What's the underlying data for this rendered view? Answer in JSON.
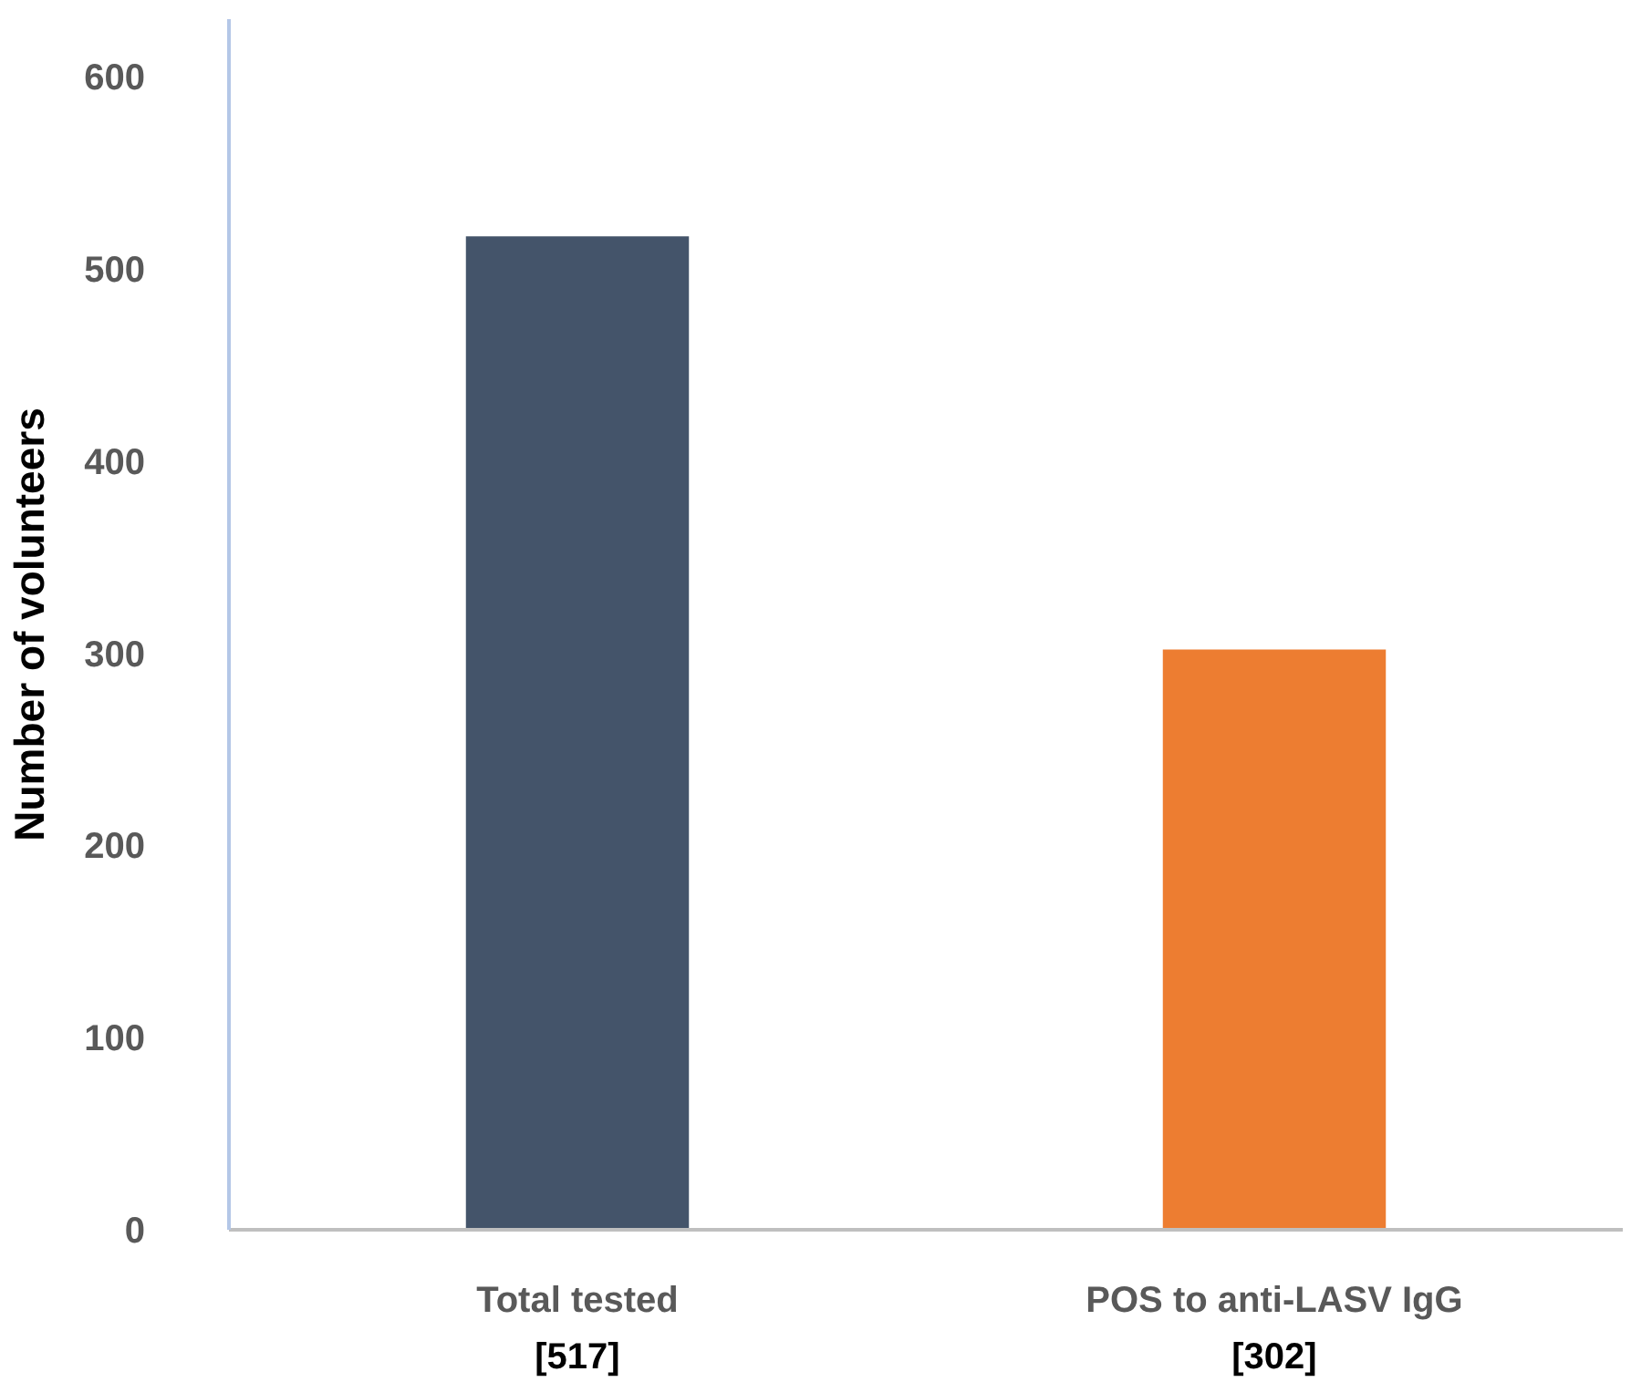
{
  "chart_data": {
    "type": "bar",
    "ylabel": "Number of volunteers",
    "categories": [
      "Total tested",
      "POS to anti-LASV IgG"
    ],
    "values": [
      517,
      302
    ],
    "colors": [
      "#44546a",
      "#ed7d31"
    ],
    "value_labels": [
      "[517]",
      "[302]"
    ],
    "ylim": [
      0,
      630
    ],
    "yticks": [
      0,
      100,
      200,
      300,
      400,
      500,
      600
    ],
    "grid": false
  }
}
